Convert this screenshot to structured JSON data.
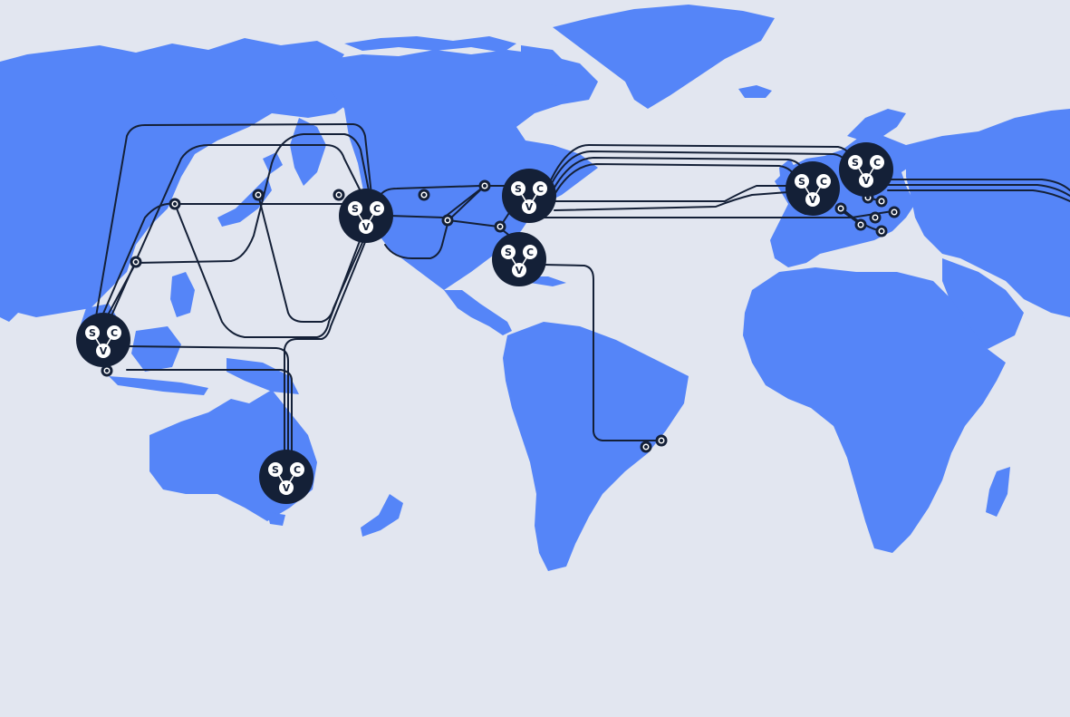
{
  "colors": {
    "ocean": "#e2e6f0",
    "land": "#5585f8",
    "route": "#142037",
    "hub": "#142037"
  },
  "hub_badge": {
    "icon": "scv-network-badge-icon",
    "letters": [
      "S",
      "C",
      "V"
    ]
  },
  "hubs": [
    {
      "id": "southeast-asia"
    },
    {
      "id": "australia"
    },
    {
      "id": "us-west"
    },
    {
      "id": "us-east"
    },
    {
      "id": "us-south"
    },
    {
      "id": "europe-west"
    },
    {
      "id": "europe-central"
    }
  ]
}
